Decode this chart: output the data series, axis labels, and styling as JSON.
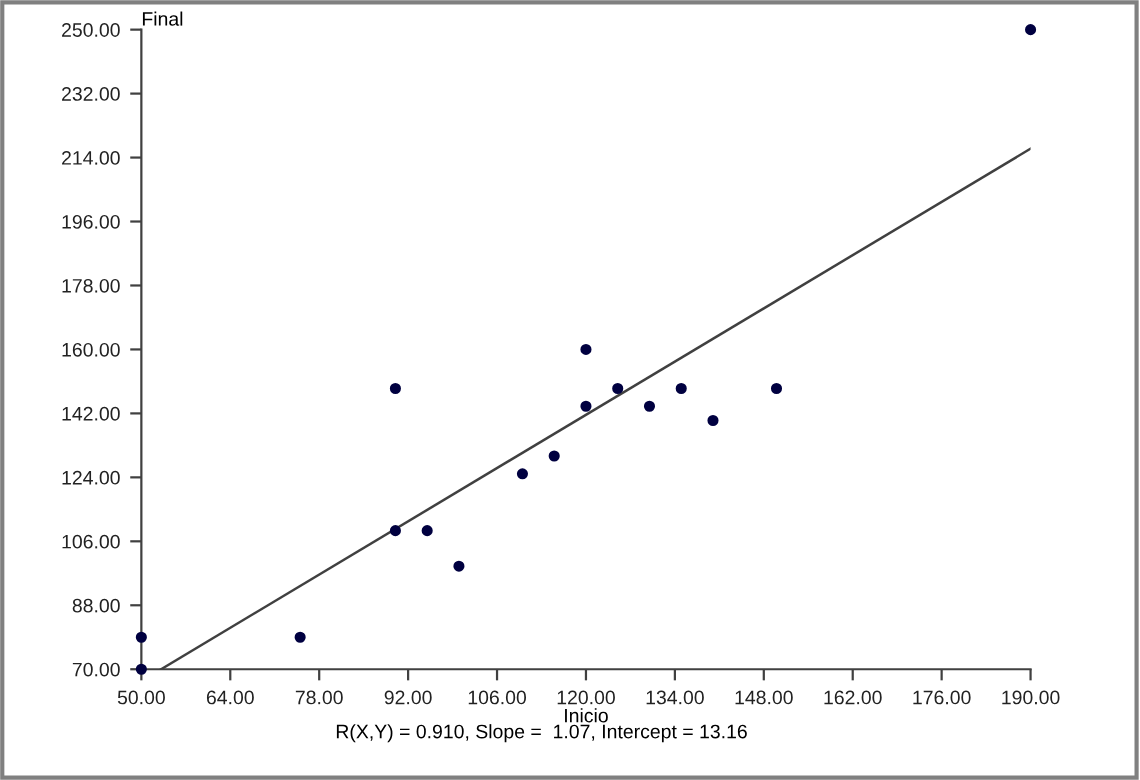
{
  "chart_data": {
    "type": "scatter",
    "xlabel": "Inicio",
    "ylabel": "Final",
    "annotations": [
      "R(X,Y) = 0.910, Slope =  1.07, Intercept = 13.16"
    ],
    "series": [
      {
        "x": [
          50,
          50,
          75,
          90,
          90,
          95,
          100,
          110,
          115,
          120,
          120,
          125,
          130,
          135,
          140,
          150,
          190
        ],
        "values": [
          79,
          70,
          79,
          149,
          109,
          109,
          99,
          125,
          130,
          160,
          144,
          149,
          144,
          149,
          140,
          149,
          250
        ],
        "color": "#000040",
        "marker": "circle"
      },
      {
        "type": "line",
        "x": [
          53.1,
          190
        ],
        "values": [
          70,
          216.5
        ],
        "color": "#404040",
        "line_style": "solid"
      }
    ],
    "xlim": [
      50,
      190
    ],
    "ylim": [
      70,
      250
    ],
    "xticks": [
      {
        "value": 50,
        "label": "50.00"
      },
      {
        "value": 64,
        "label": "64.00"
      },
      {
        "value": 78,
        "label": "78.00"
      },
      {
        "value": 92,
        "label": "92.00"
      },
      {
        "value": 106,
        "label": "106.00"
      },
      {
        "value": 120,
        "label": "120.00"
      },
      {
        "value": 134,
        "label": "134.00"
      },
      {
        "value": 148,
        "label": "148.00"
      },
      {
        "value": 162,
        "label": "162.00"
      },
      {
        "value": 176,
        "label": "176.00"
      },
      {
        "value": 190,
        "label": "190.00"
      }
    ],
    "yticks": [
      {
        "value": 70,
        "label": "70.00"
      },
      {
        "value": 88,
        "label": "88.00"
      },
      {
        "value": 106,
        "label": "106.00"
      },
      {
        "value": 124,
        "label": "124.00"
      },
      {
        "value": 142,
        "label": "142.00"
      },
      {
        "value": 160,
        "label": "160.00"
      },
      {
        "value": 178,
        "label": "178.00"
      },
      {
        "value": 196,
        "label": "196.00"
      },
      {
        "value": 214,
        "label": "214.00"
      },
      {
        "value": 232,
        "label": "232.00"
      },
      {
        "value": 250,
        "label": "250.00"
      }
    ],
    "grid": false,
    "legend": false
  }
}
